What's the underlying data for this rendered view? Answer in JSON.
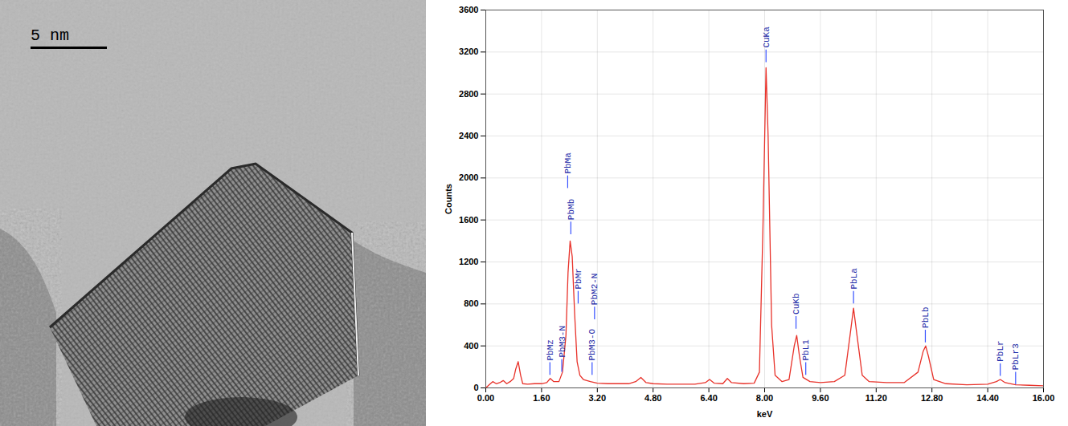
{
  "micrograph": {
    "scale_bar_label": "5 nm"
  },
  "chart_data": {
    "type": "line",
    "x_label": "keV",
    "y_label": "Counts",
    "color": "#e8322a",
    "x": [
      0.0,
      0.1,
      0.2,
      0.3,
      0.4,
      0.5,
      0.6,
      0.7,
      0.8,
      0.86,
      0.93,
      1.0,
      1.06,
      1.2,
      1.4,
      1.6,
      1.75,
      1.85,
      1.95,
      2.1,
      2.2,
      2.3,
      2.36,
      2.42,
      2.48,
      2.55,
      2.62,
      2.7,
      2.8,
      3.0,
      3.2,
      3.5,
      3.8,
      4.1,
      4.3,
      4.45,
      4.6,
      4.8,
      5.2,
      5.6,
      6.0,
      6.3,
      6.42,
      6.55,
      6.8,
      6.93,
      7.05,
      7.4,
      7.7,
      7.85,
      7.95,
      8.04,
      8.1,
      8.2,
      8.3,
      8.5,
      8.7,
      8.85,
      8.92,
      9.0,
      9.1,
      9.3,
      9.6,
      10.0,
      10.3,
      10.45,
      10.55,
      10.65,
      10.8,
      11.0,
      11.5,
      12.0,
      12.4,
      12.55,
      12.62,
      12.7,
      12.85,
      13.2,
      13.8,
      14.4,
      14.65,
      14.76,
      14.9,
      15.2,
      15.6,
      16.0
    ],
    "values": [
      0,
      30,
      60,
      40,
      50,
      70,
      40,
      60,
      90,
      180,
      250,
      120,
      40,
      35,
      40,
      40,
      50,
      90,
      60,
      60,
      150,
      500,
      1100,
      1400,
      1250,
      700,
      250,
      120,
      80,
      60,
      45,
      40,
      40,
      40,
      60,
      100,
      50,
      40,
      35,
      35,
      35,
      50,
      80,
      45,
      40,
      90,
      50,
      40,
      45,
      150,
      1500,
      3050,
      2400,
      600,
      120,
      60,
      80,
      400,
      500,
      300,
      100,
      60,
      50,
      60,
      120,
      500,
      760,
      500,
      120,
      60,
      50,
      50,
      150,
      350,
      400,
      300,
      80,
      40,
      30,
      35,
      60,
      80,
      50,
      30,
      25,
      20
    ],
    "xlim": [
      0,
      16
    ],
    "xticks": [
      {
        "value": 0,
        "label": "0.00"
      },
      {
        "value": 1.6,
        "label": "1.60"
      },
      {
        "value": 3.2,
        "label": "3.20"
      },
      {
        "value": 4.8,
        "label": "4.80"
      },
      {
        "value": 6.4,
        "label": "6.40"
      },
      {
        "value": 8,
        "label": "8.00"
      },
      {
        "value": 9.6,
        "label": "9.60"
      },
      {
        "value": 11.2,
        "label": "11.20"
      },
      {
        "value": 12.8,
        "label": "12.80"
      },
      {
        "value": 14.4,
        "label": "14.40"
      },
      {
        "value": 16,
        "label": "16.00"
      }
    ],
    "ylim": [
      0,
      3600
    ],
    "yticks": [
      0,
      400,
      800,
      1200,
      1600,
      2000,
      2400,
      2800,
      3200,
      3600
    ],
    "grid": true,
    "annotations": [
      {
        "text": "PbMz",
        "x": 1.84,
        "y": 120
      },
      {
        "text": "PbM3-N",
        "x": 2.18,
        "y": 150
      },
      {
        "text": "PbMa",
        "x": 2.35,
        "y": 1900
      },
      {
        "text": "PbMb",
        "x": 2.44,
        "y": 1460
      },
      {
        "text": "PbMr",
        "x": 2.65,
        "y": 800
      },
      {
        "text": "PbM3-O",
        "x": 3.05,
        "y": 120
      },
      {
        "text": "PbM2-N",
        "x": 3.12,
        "y": 650
      },
      {
        "text": "CuKa",
        "x": 8.04,
        "y": 3100
      },
      {
        "text": "CuKb",
        "x": 8.9,
        "y": 560
      },
      {
        "text": "PbL1",
        "x": 9.18,
        "y": 120
      },
      {
        "text": "PbLa",
        "x": 10.55,
        "y": 800
      },
      {
        "text": "PbLb",
        "x": 12.61,
        "y": 430
      },
      {
        "text": "PbLr",
        "x": 14.76,
        "y": 110
      },
      {
        "text": "PbLr3",
        "x": 15.2,
        "y": 30
      }
    ]
  }
}
